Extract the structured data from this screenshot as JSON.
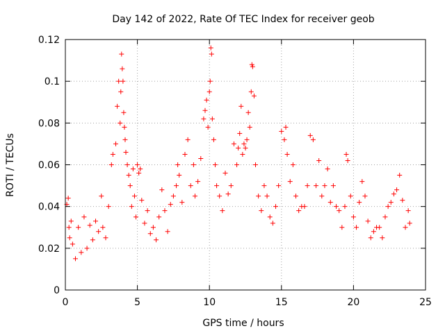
{
  "chart_data": {
    "type": "scatter",
    "title": "Day 142 of 2022, Rate Of TEC Index for receiver geob",
    "xlabel": "GPS time / hours",
    "ylabel": "ROTI / TECUs",
    "xlim": [
      0,
      25
    ],
    "ylim": [
      0,
      0.12
    ],
    "x_ticks": [
      0,
      5,
      10,
      15,
      20,
      25
    ],
    "x_tick_labels": [
      "0",
      "5",
      "10",
      "15",
      "20",
      "25"
    ],
    "y_ticks": [
      0,
      0.02,
      0.04,
      0.06,
      0.08,
      0.1,
      0.12
    ],
    "y_tick_labels": [
      "0",
      "0.02",
      "0.04",
      "0.06",
      "0.08",
      "0.1",
      "0.12"
    ],
    "grid": true,
    "marker": "plus",
    "series": [
      {
        "name": "",
        "color": "#ff0000",
        "x": [
          0.1,
          0.2,
          0.25,
          0.3,
          0.4,
          0.5,
          0.7,
          0.9,
          1.1,
          1.3,
          1.5,
          1.7,
          1.9,
          2.1,
          2.3,
          2.5,
          2.6,
          2.8,
          3.0,
          3.2,
          3.3,
          3.5,
          3.6,
          3.7,
          3.8,
          3.85,
          3.9,
          3.95,
          4.0,
          4.05,
          4.1,
          4.15,
          4.2,
          4.3,
          4.4,
          4.5,
          4.6,
          4.7,
          4.8,
          4.9,
          5.0,
          5.1,
          5.2,
          5.3,
          5.5,
          5.7,
          5.9,
          6.1,
          6.3,
          6.5,
          6.7,
          6.9,
          7.1,
          7.3,
          7.5,
          7.7,
          7.8,
          7.9,
          8.1,
          8.3,
          8.5,
          8.7,
          8.9,
          9.0,
          9.2,
          9.4,
          9.6,
          9.7,
          9.8,
          9.9,
          10.0,
          10.05,
          10.1,
          10.15,
          10.2,
          10.3,
          10.4,
          10.5,
          10.7,
          10.9,
          11.1,
          11.3,
          11.5,
          11.7,
          11.9,
          12.0,
          12.1,
          12.2,
          12.3,
          12.4,
          12.5,
          12.6,
          12.7,
          12.8,
          12.9,
          12.95,
          13.0,
          13.1,
          13.2,
          13.4,
          13.6,
          13.8,
          14.0,
          14.2,
          14.4,
          14.6,
          14.8,
          15.0,
          15.2,
          15.3,
          15.4,
          15.6,
          15.8,
          16.0,
          16.2,
          16.4,
          16.6,
          16.8,
          17.0,
          17.2,
          17.4,
          17.6,
          17.8,
          18.0,
          18.2,
          18.4,
          18.6,
          18.8,
          19.0,
          19.2,
          19.4,
          19.5,
          19.6,
          19.8,
          20.0,
          20.2,
          20.4,
          20.6,
          20.8,
          21.0,
          21.2,
          21.4,
          21.6,
          21.8,
          22.0,
          22.2,
          22.4,
          22.6,
          22.8,
          23.0,
          23.2,
          23.4,
          23.6,
          23.8,
          23.9
        ],
        "y": [
          0.041,
          0.044,
          0.03,
          0.025,
          0.033,
          0.022,
          0.015,
          0.03,
          0.018,
          0.035,
          0.02,
          0.031,
          0.024,
          0.033,
          0.028,
          0.045,
          0.03,
          0.025,
          0.04,
          0.06,
          0.065,
          0.07,
          0.088,
          0.1,
          0.08,
          0.095,
          0.113,
          0.106,
          0.1,
          0.085,
          0.078,
          0.072,
          0.066,
          0.06,
          0.055,
          0.05,
          0.04,
          0.058,
          0.045,
          0.035,
          0.06,
          0.056,
          0.058,
          0.043,
          0.032,
          0.038,
          0.027,
          0.03,
          0.024,
          0.035,
          0.048,
          0.038,
          0.028,
          0.041,
          0.045,
          0.05,
          0.06,
          0.055,
          0.042,
          0.065,
          0.072,
          0.05,
          0.06,
          0.045,
          0.052,
          0.063,
          0.082,
          0.086,
          0.091,
          0.078,
          0.095,
          0.1,
          0.116,
          0.113,
          0.082,
          0.072,
          0.06,
          0.05,
          0.045,
          0.038,
          0.056,
          0.046,
          0.05,
          0.07,
          0.06,
          0.068,
          0.075,
          0.088,
          0.065,
          0.07,
          0.068,
          0.072,
          0.085,
          0.078,
          0.095,
          0.108,
          0.107,
          0.093,
          0.06,
          0.045,
          0.038,
          0.05,
          0.045,
          0.035,
          0.032,
          0.04,
          0.05,
          0.076,
          0.072,
          0.078,
          0.065,
          0.052,
          0.06,
          0.045,
          0.038,
          0.04,
          0.04,
          0.05,
          0.074,
          0.072,
          0.05,
          0.062,
          0.045,
          0.05,
          0.058,
          0.042,
          0.05,
          0.04,
          0.038,
          0.03,
          0.04,
          0.065,
          0.062,
          0.045,
          0.035,
          0.03,
          0.042,
          0.052,
          0.045,
          0.033,
          0.025,
          0.028,
          0.03,
          0.03,
          0.025,
          0.035,
          0.04,
          0.042,
          0.046,
          0.048,
          0.055,
          0.043,
          0.03,
          0.038,
          0.032
        ]
      }
    ]
  }
}
